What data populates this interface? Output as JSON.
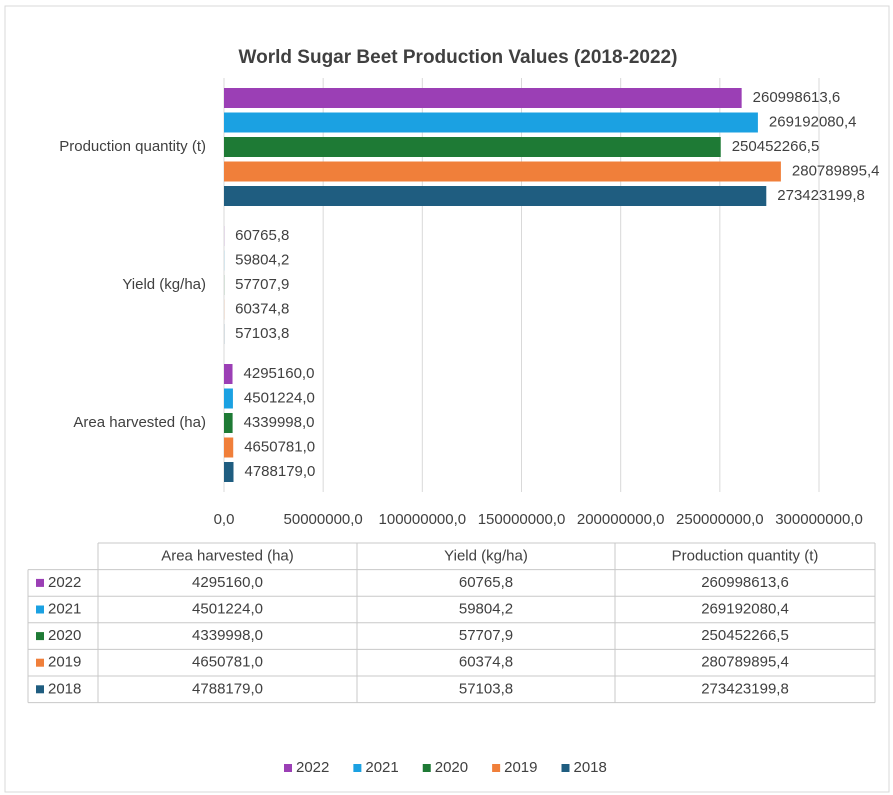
{
  "chart_data": {
    "type": "bar",
    "orientation": "horizontal",
    "title": "World Sugar Beet Production Values (2018-2022)",
    "categories": [
      "Production quantity (t)",
      "Yield (kg/ha)",
      "Area harvested (ha)"
    ],
    "series": [
      {
        "name": "2022",
        "color": "#9b3fb5",
        "values": [
          260998613.6,
          60765.8,
          4295160.0
        ],
        "value_labels": [
          "260998613,6",
          "60765,8",
          "4295160,0"
        ]
      },
      {
        "name": "2021",
        "color": "#1ba1e2",
        "values": [
          269192080.4,
          59804.2,
          4501224.0
        ],
        "value_labels": [
          "269192080,4",
          "59804,2",
          "4501224,0"
        ]
      },
      {
        "name": "2020",
        "color": "#1e7a35",
        "values": [
          250452266.5,
          57707.9,
          4339998.0
        ],
        "value_labels": [
          "250452266,5",
          "57707,9",
          "4339998,0"
        ]
      },
      {
        "name": "2019",
        "color": "#f07f3a",
        "values": [
          280789895.4,
          60374.8,
          4650781.0
        ],
        "value_labels": [
          "280789895,4",
          "60374,8",
          "4650781,0"
        ]
      },
      {
        "name": "2018",
        "color": "#1f5d80",
        "values": [
          273423199.8,
          57103.8,
          4788179.0
        ],
        "value_labels": [
          "273423199,8",
          "57103,8",
          "4788179,0"
        ]
      }
    ],
    "xlim": [
      0,
      300000000
    ],
    "xticks": [
      {
        "value": 0,
        "label": "0,0"
      },
      {
        "value": 50000000,
        "label": "50000000,0"
      },
      {
        "value": 100000000,
        "label": "100000000,0"
      },
      {
        "value": 150000000,
        "label": "150000000,0"
      },
      {
        "value": 200000000,
        "label": "200000000,0"
      },
      {
        "value": 250000000,
        "label": "250000000,0"
      },
      {
        "value": 300000000,
        "label": "300000000,0"
      }
    ],
    "grid": true,
    "legend": "bottom",
    "data_table": true
  }
}
